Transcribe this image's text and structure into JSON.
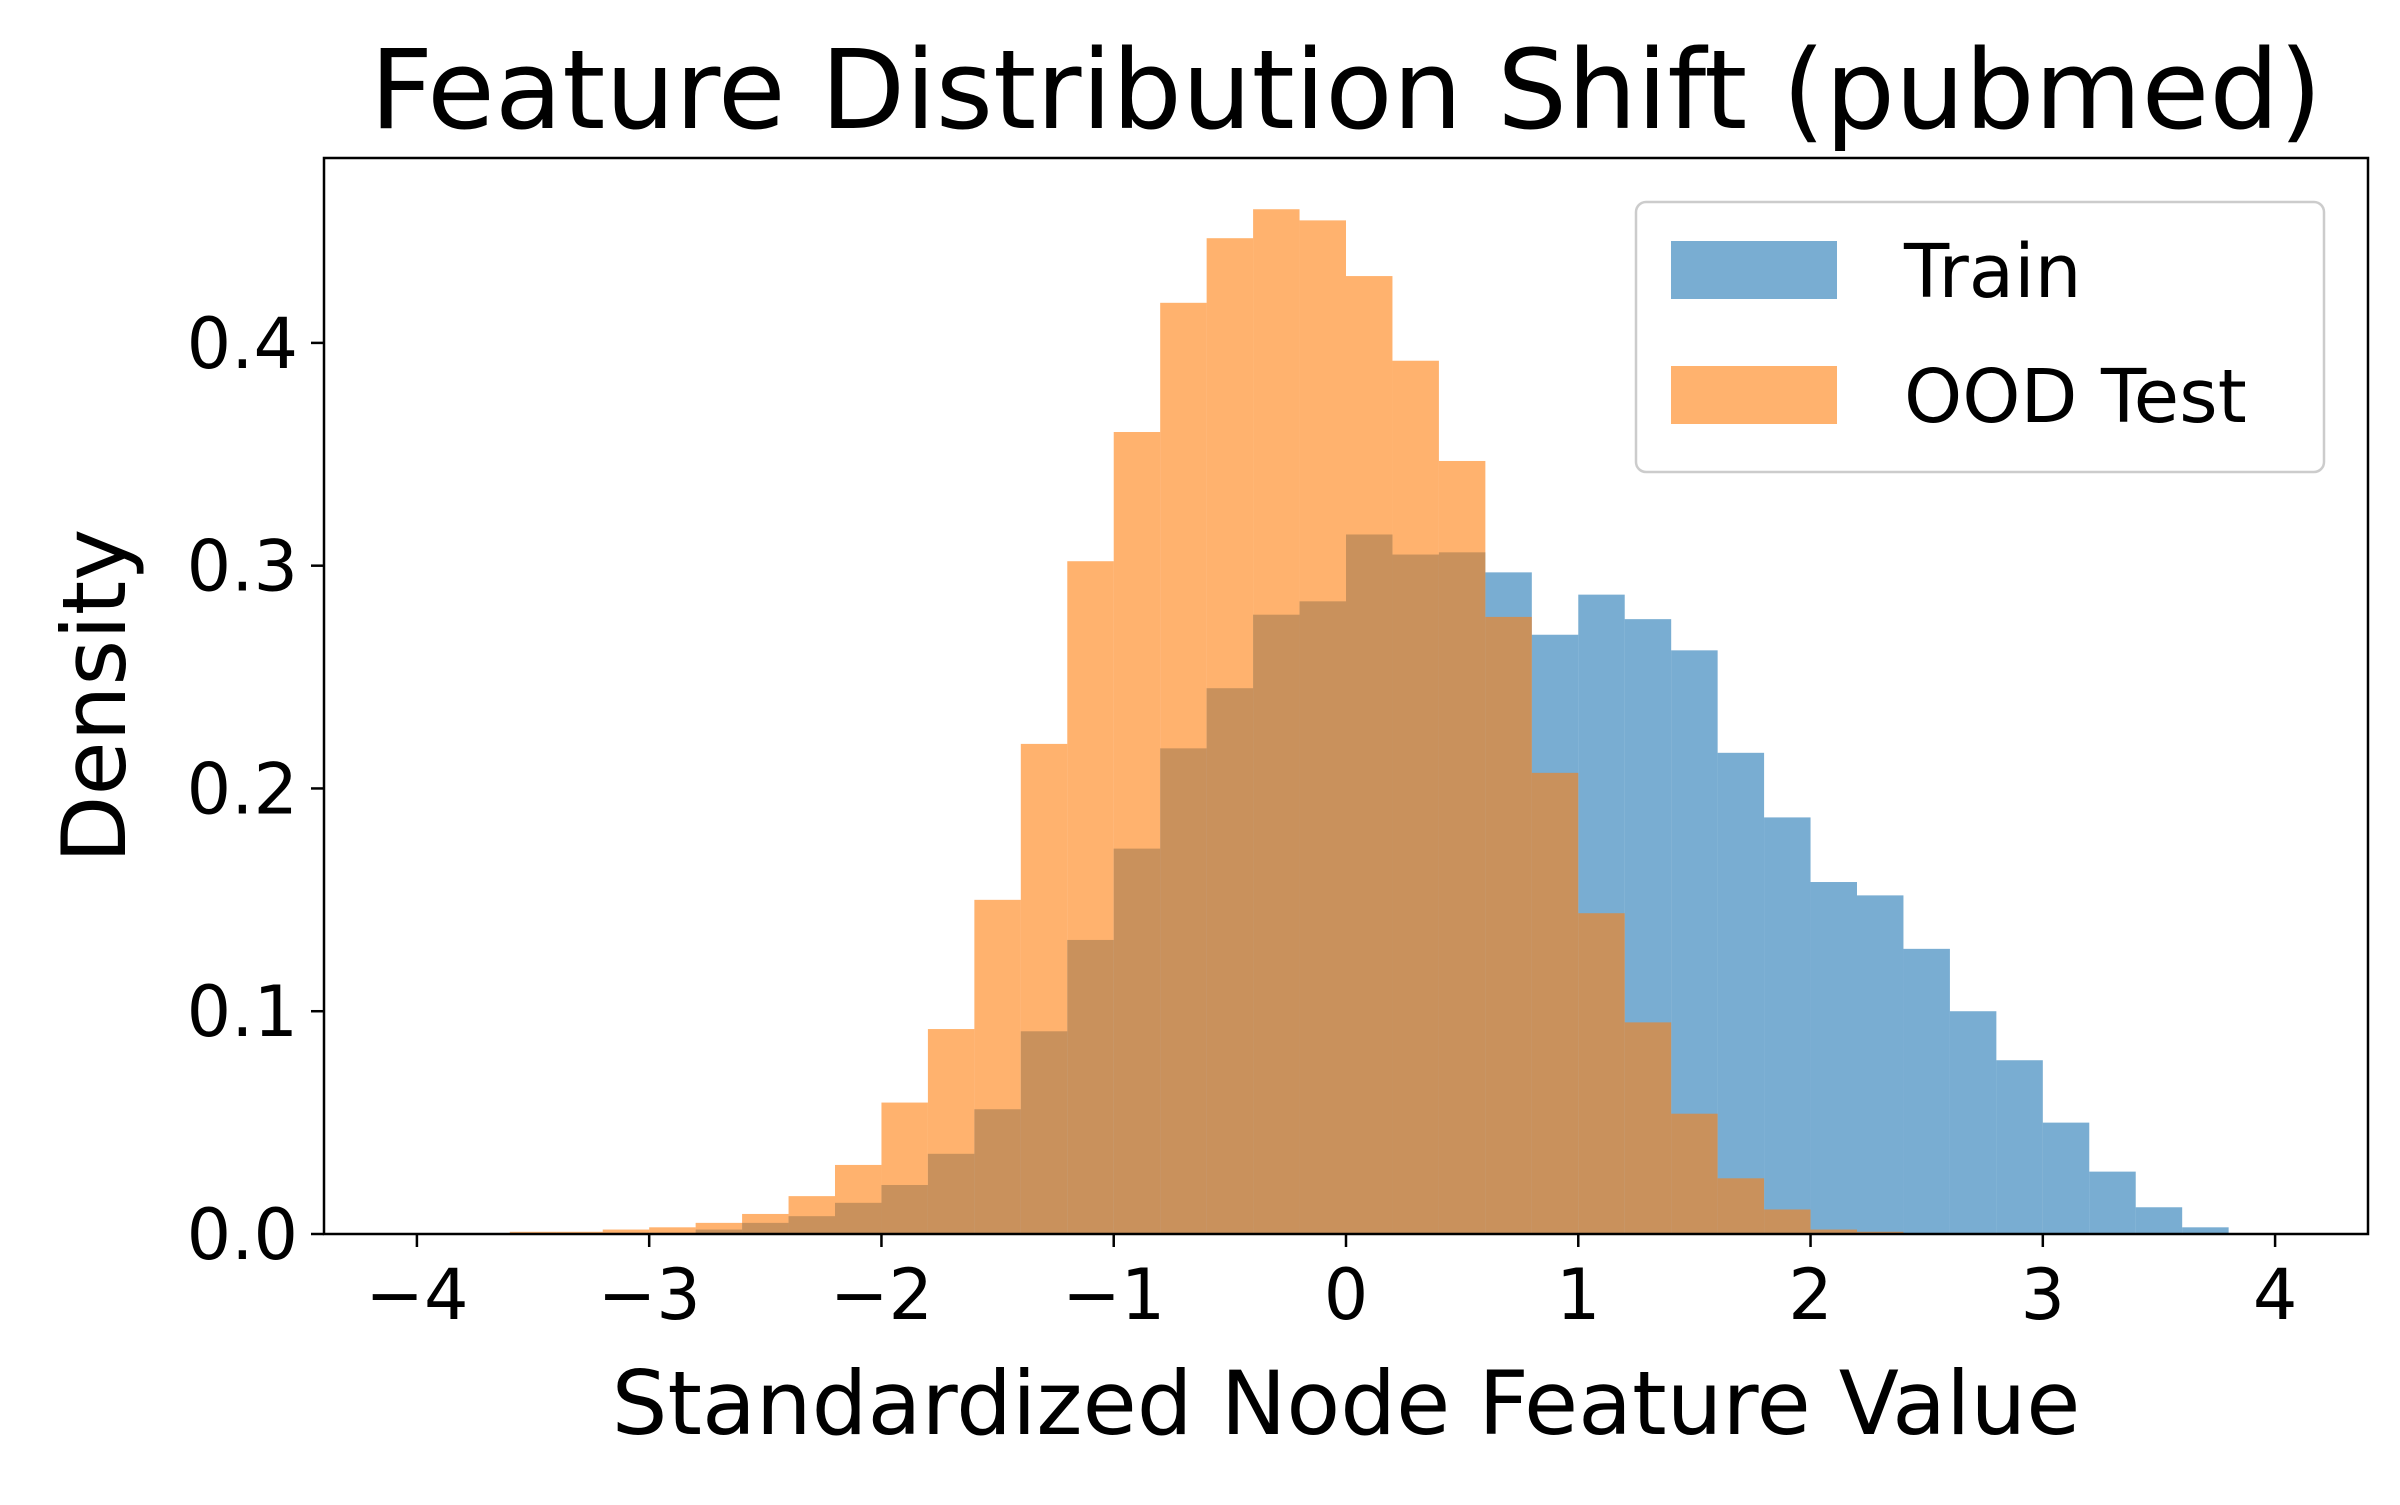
{
  "chart_data": {
    "type": "histogram",
    "title": "Feature Distribution Shift (pubmed)",
    "xlabel": "Standardized Node Feature Value",
    "ylabel": "Density",
    "xlim": [
      -4.4,
      4.4
    ],
    "ylim": [
      0,
      0.483
    ],
    "xticks": [
      -4,
      -3,
      -2,
      -1,
      0,
      1,
      2,
      3,
      4
    ],
    "xtick_labels": [
      "−4",
      "−3",
      "−2",
      "−1",
      "0",
      "1",
      "2",
      "3",
      "4"
    ],
    "yticks": [
      0.0,
      0.1,
      0.2,
      0.3,
      0.4
    ],
    "ytick_labels": [
      "0.0",
      "0.1",
      "0.2",
      "0.3",
      "0.4"
    ],
    "grid": false,
    "legend_position": "top-right",
    "bin_edges": [
      -4.0,
      -3.8,
      -3.6,
      -3.4,
      -3.2,
      -3.0,
      -2.8,
      -2.6,
      -2.4,
      -2.2,
      -2.0,
      -1.8,
      -1.6,
      -1.4,
      -1.2,
      -1.0,
      -0.8,
      -0.6,
      -0.4,
      -0.2,
      0.0,
      0.2,
      0.4,
      0.6,
      0.8,
      1.0,
      1.2,
      1.4,
      1.6,
      1.8,
      2.0,
      2.2,
      2.4,
      2.6,
      2.8,
      3.0,
      3.2,
      3.4,
      3.6,
      3.8
    ],
    "series": [
      {
        "name": "Train",
        "color": "#1f77b4",
        "alpha": 0.6,
        "values": [
          0,
          0,
          0,
          0,
          0,
          0,
          0.002,
          0.005,
          0.008,
          0.014,
          0.022,
          0.036,
          0.056,
          0.091,
          0.132,
          0.173,
          0.218,
          0.245,
          0.278,
          0.284,
          0.314,
          0.305,
          0.306,
          0.297,
          0.269,
          0.287,
          0.276,
          0.262,
          0.216,
          0.187,
          0.158,
          0.152,
          0.128,
          0.1,
          0.078,
          0.05,
          0.028,
          0.012,
          0.003
        ]
      },
      {
        "name": "OOD Test",
        "color": "#ff7f0e",
        "alpha": 0.6,
        "values": [
          0,
          0,
          0.001,
          0.001,
          0.002,
          0.003,
          0.005,
          0.009,
          0.017,
          0.031,
          0.059,
          0.092,
          0.15,
          0.22,
          0.302,
          0.36,
          0.418,
          0.447,
          0.46,
          0.455,
          0.43,
          0.392,
          0.347,
          0.277,
          0.207,
          0.144,
          0.095,
          0.054,
          0.025,
          0.011,
          0.002,
          0.001,
          0,
          0,
          0,
          0,
          0,
          0,
          0
        ]
      }
    ]
  }
}
